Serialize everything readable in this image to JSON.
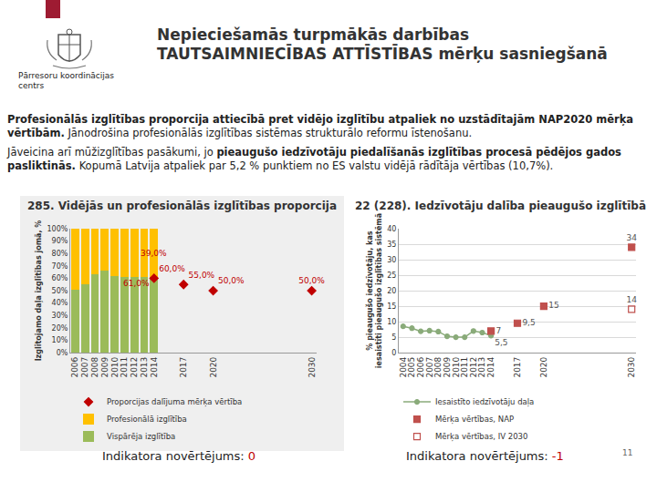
{
  "document": {
    "header": {
      "title": "Nepieciešamās turpmākās darbības TAUTSAIMNIECĪBAS ATTĪSTĪBAS mērķu sasniegšanā",
      "logo_text": "Pārresoru koordinācijas centrs"
    },
    "paragraphs": [
      [
        {
          "text": "Profesionālās izglītības proporcija attiecībā pret vidējo izglītību atpaliek no uzstādītajām NAP2020 mērķa vērtībām.",
          "bold": true
        },
        {
          "text": " Jānodrošina profesionālās izglītības sistēmas strukturālo reformu īstenošanu.",
          "bold": false
        }
      ],
      [
        {
          "text": "Jāveicina arī mūžizglītības pasākumi, jo ",
          "bold": false
        },
        {
          "text": "pieaugušo iedzīvotāju piedalīšanās izglītības procesā pēdējos gados pasliktinās.",
          "bold": true
        },
        {
          "text": " Kopumā Latvija atpaliek par 5,2 % punktiem no ES valstu vidējā rādītāja vērtības (10,7%).",
          "bold": false
        }
      ]
    ],
    "assessments": [
      {
        "label": "Indikatora novērtējums:",
        "value": "0"
      },
      {
        "label": "Indikatora novērtējums:",
        "value": "-1"
      }
    ],
    "page_number": "11"
  },
  "chart_data": [
    {
      "type": "bar",
      "title": "285. Vidējās un profesionālās izglītības proporcija",
      "y_label": "Izglītojamo daļa izglītības jomā, %",
      "stacked": true,
      "legend": "bottom",
      "grid": false,
      "data_labels": true,
      "xlim": [
        2005.5,
        2030.5
      ],
      "xticks": [
        2006,
        2007,
        2008,
        2009,
        2010,
        2011,
        2012,
        2013,
        2014,
        2017,
        2020,
        2030
      ],
      "ylim": [
        0,
        100
      ],
      "yticks": [
        {
          "value": 0,
          "label": "0%"
        },
        {
          "value": 10,
          "label": "10%"
        },
        {
          "value": 20,
          "label": "20%"
        },
        {
          "value": 30,
          "label": "30%"
        },
        {
          "value": 40,
          "label": "40%"
        },
        {
          "value": 50,
          "label": "50%"
        },
        {
          "value": 60,
          "label": "60%"
        },
        {
          "value": 70,
          "label": "70%"
        },
        {
          "value": 80,
          "label": "80%"
        },
        {
          "value": 90,
          "label": "90%"
        },
        {
          "value": 100,
          "label": "100%"
        }
      ],
      "series": [
        {
          "name": "Vispārēja izglītība",
          "type": "bar",
          "color": "#9bbb59",
          "x": [
            2006,
            2007,
            2008,
            2009,
            2010,
            2011,
            2012,
            2013,
            2014
          ],
          "values": [
            51,
            55,
            63,
            66,
            62,
            61,
            61,
            61,
            61
          ],
          "value_labels": [
            null,
            null,
            null,
            null,
            null,
            null,
            null,
            null,
            "61,0%"
          ]
        },
        {
          "name": "Profesionālā izglītība",
          "type": "bar",
          "color": "#ffc000",
          "x": [
            2006,
            2007,
            2008,
            2009,
            2010,
            2011,
            2012,
            2013,
            2014
          ],
          "values": [
            49,
            45,
            37,
            34,
            38,
            39,
            39,
            39,
            39
          ],
          "value_labels": [
            null,
            null,
            null,
            null,
            null,
            null,
            null,
            null,
            "39,0%"
          ]
        },
        {
          "name": "Proporcijas dalījuma mērķa vērtība",
          "type": "scatter",
          "marker": "diamond",
          "color": "#c00000",
          "x": [
            2014,
            2017,
            2020,
            2030
          ],
          "values": [
            60,
            55,
            50,
            50
          ],
          "value_labels": [
            "60,0%",
            "55,0%",
            "50,0%",
            "50,0%"
          ]
        }
      ]
    },
    {
      "type": "line",
      "title": "22 (228). Iedzīvotāju dalība pieaugušo izglītībā",
      "y_label": "% pieaugušo iedzīvotāju, kas iesaistīti pieaugušo izglītības sistēmā",
      "grid": true,
      "legend": "bottom",
      "data_labels": true,
      "xlim": [
        2003.5,
        2030.5
      ],
      "xticks": [
        2004,
        2005,
        2006,
        2007,
        2008,
        2009,
        2010,
        2011,
        2012,
        2013,
        2014,
        2017,
        2020,
        2030
      ],
      "ylim": [
        0,
        40
      ],
      "yticks": [
        0,
        5,
        10,
        15,
        20,
        25,
        30,
        35,
        40
      ],
      "series": [
        {
          "name": "Iesaistīto iedzīvotāju daļa",
          "type": "line",
          "marker": "circle",
          "color": "#8aab7a",
          "x": [
            2004,
            2005,
            2006,
            2007,
            2008,
            2009,
            2010,
            2011,
            2012,
            2013,
            2014
          ],
          "values": [
            8.5,
            7.9,
            6.9,
            7.1,
            6.8,
            5.3,
            5.0,
            5.0,
            7.0,
            6.5,
            5.5
          ],
          "value_labels": [
            null,
            null,
            null,
            null,
            null,
            null,
            null,
            null,
            null,
            null,
            "5,5"
          ]
        },
        {
          "name": "Mērķa vērtības, NAP",
          "type": "scatter",
          "marker": "square",
          "color": "#c0504d",
          "x": [
            2014,
            2017,
            2020,
            2030
          ],
          "values": [
            7,
            9.5,
            15,
            34
          ],
          "value_labels": [
            "7",
            "9,5",
            "15",
            "34"
          ]
        },
        {
          "name": "Mērķa vērtības, IV 2030",
          "type": "scatter",
          "marker": "square-open",
          "color": "#c0504d",
          "x": [
            2030
          ],
          "values": [
            14
          ],
          "value_labels": [
            "14"
          ]
        }
      ]
    }
  ]
}
